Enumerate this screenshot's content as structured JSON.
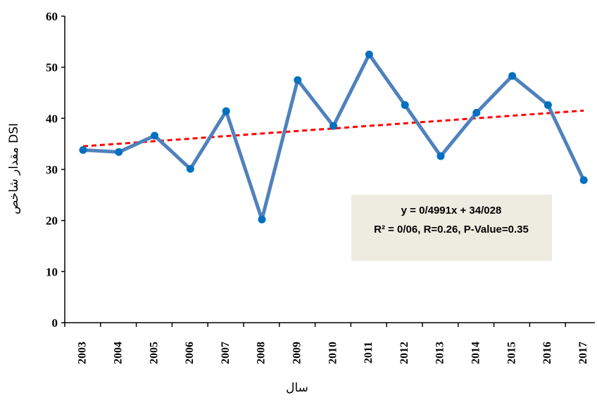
{
  "chart_data": {
    "type": "line",
    "title": "",
    "xlabel": "سال",
    "ylabel": "مقدار شاخص DSI",
    "ylim": [
      0,
      60
    ],
    "yticks": [
      0,
      10,
      20,
      30,
      40,
      50,
      60
    ],
    "categories": [
      "2003",
      "2004",
      "2005",
      "2006",
      "2007",
      "2008",
      "2009",
      "2010",
      "2011",
      "2012",
      "2013",
      "2014",
      "2015",
      "2016",
      "2017"
    ],
    "series": [
      {
        "values": [
          33.8,
          33.4,
          36.6,
          30.1,
          41.4,
          20.2,
          47.5,
          38.5,
          52.5,
          42.6,
          32.6,
          41.1,
          48.3,
          42.6,
          27.9
        ],
        "color": "#4F81BD"
      }
    ],
    "trendline": {
      "type": "linear",
      "slope": 0.4991,
      "intercept": 34.028,
      "color": "#FF0000",
      "style": "dashed"
    },
    "annotation": {
      "line1": "y = 0/4991x + 34/028",
      "line2": "R² = 0/06, R=0.26, P-Value=0.35",
      "background": "#EEECE1"
    },
    "grid": false,
    "legend": "none"
  }
}
